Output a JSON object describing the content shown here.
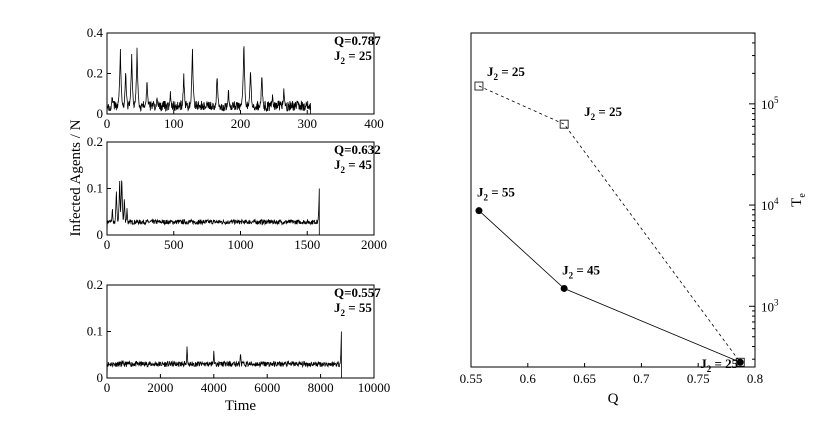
{
  "figure": {
    "shared_ylabel": "Infected Agents / N"
  },
  "chart_data": [
    {
      "type": "line",
      "xlabel": "",
      "ylabel": "",
      "xlim": [
        0,
        400
      ],
      "ylim": [
        0,
        0.4
      ],
      "xticks": [
        0,
        100,
        200,
        300,
        400
      ],
      "yticks": [
        0,
        0.2,
        0.4
      ],
      "xtick_labels": [
        "0",
        "100",
        "200",
        "300",
        "400"
      ],
      "ytick_labels": [
        "0",
        "0.2",
        "0.4"
      ],
      "annotation": {
        "q": "Q=0.787",
        "j_main": "J",
        "j_sub": "2",
        "j_val": " = 25"
      },
      "series": [
        {
          "x_end": 305,
          "baseline": 0.04,
          "noise": 0.025,
          "spikes": [
            [
              8,
              0.1
            ],
            [
              20,
              0.33
            ],
            [
              28,
              0.22
            ],
            [
              37,
              0.3
            ],
            [
              45,
              0.34
            ],
            [
              60,
              0.18
            ],
            [
              75,
              0.09
            ],
            [
              95,
              0.12
            ],
            [
              115,
              0.2
            ],
            [
              128,
              0.33
            ],
            [
              150,
              0.07
            ],
            [
              165,
              0.2
            ],
            [
              182,
              0.12
            ],
            [
              205,
              0.37
            ],
            [
              215,
              0.24
            ],
            [
              232,
              0.2
            ],
            [
              248,
              0.1
            ],
            [
              265,
              0.12
            ],
            [
              285,
              0.07
            ]
          ],
          "seed": 3
        }
      ]
    },
    {
      "type": "line",
      "xlabel": "",
      "ylabel": "",
      "xlim": [
        0,
        2000
      ],
      "ylim": [
        0,
        0.2
      ],
      "xticks": [
        0,
        500,
        1000,
        1500,
        2000
      ],
      "yticks": [
        0,
        0.1,
        0.2
      ],
      "xtick_labels": [
        "0",
        "500",
        "1000",
        "1500",
        "2000"
      ],
      "ytick_labels": [
        "0",
        "0.1",
        "0.2"
      ],
      "annotation": {
        "q": "Q=0.632",
        "j_main": "J",
        "j_sub": "2",
        "j_val": " = 45"
      },
      "series": [
        {
          "x_end": 1590,
          "baseline": 0.028,
          "noise": 0.005,
          "spikes": [
            [
              40,
              0.06
            ],
            [
              70,
              0.1
            ],
            [
              95,
              0.12
            ],
            [
              110,
              0.13
            ],
            [
              130,
              0.08
            ],
            [
              150,
              0.06
            ],
            [
              1590,
              0.1
            ]
          ],
          "seed": 7
        }
      ]
    },
    {
      "type": "line",
      "xlabel": "Time",
      "ylabel": "",
      "xlim": [
        0,
        10000
      ],
      "ylim": [
        0,
        0.2
      ],
      "xticks": [
        0,
        2000,
        4000,
        6000,
        8000,
        10000
      ],
      "yticks": [
        0,
        0.1,
        0.2
      ],
      "xtick_labels": [
        "0",
        "2000",
        "4000",
        "6000",
        "8000",
        "10000"
      ],
      "ytick_labels": [
        "0",
        "0.1",
        "0.2"
      ],
      "annotation": {
        "q": "Q=0.557",
        "j_main": "J",
        "j_sub": "2",
        "j_val": " = 55"
      },
      "series": [
        {
          "x_end": 8780,
          "baseline": 0.03,
          "noise": 0.006,
          "spikes": [
            [
              3000,
              0.07
            ],
            [
              4000,
              0.06
            ],
            [
              5000,
              0.06
            ],
            [
              8780,
              0.1
            ]
          ],
          "seed": 11
        }
      ]
    },
    {
      "type": "line",
      "xlabel": "Q",
      "ylabel": "T",
      "ylabel_sub": "e",
      "xlim": [
        0.55,
        0.8
      ],
      "ylim_log10": [
        2.4,
        5.7
      ],
      "y_scale": "log",
      "y_axis_side": "right",
      "xticks": [
        0.55,
        0.6,
        0.65,
        0.7,
        0.75,
        0.8
      ],
      "xtick_labels": [
        "0.55",
        "0.6",
        "0.65",
        "0.7",
        "0.75",
        "0.8"
      ],
      "yticks_log10": [
        3,
        4,
        5
      ],
      "ytick_base": "10",
      "ytick_exps": [
        "3",
        "4",
        "5"
      ],
      "series": [
        {
          "style": "solid",
          "marker": "filled-circle",
          "points": [
            [
              0.557,
              8800
            ],
            [
              0.632,
              1500
            ],
            [
              0.787,
              280
            ]
          ],
          "labels": [
            {
              "main": "J",
              "sub": "2",
              "val": " = 55"
            },
            {
              "main": "J",
              "sub": "2",
              "val": " = 45"
            },
            {
              "main": "J",
              "sub": "2",
              "val": " = 25"
            }
          ]
        },
        {
          "style": "dashed",
          "marker": "open-square",
          "points": [
            [
              0.557,
              150000
            ],
            [
              0.632,
              63000
            ],
            [
              0.787,
              280
            ]
          ],
          "labels": [
            {
              "main": "J",
              "sub": "2",
              "val": " = 25"
            },
            {
              "main": "J",
              "sub": "2",
              "val": " = 25"
            }
          ]
        }
      ]
    }
  ]
}
